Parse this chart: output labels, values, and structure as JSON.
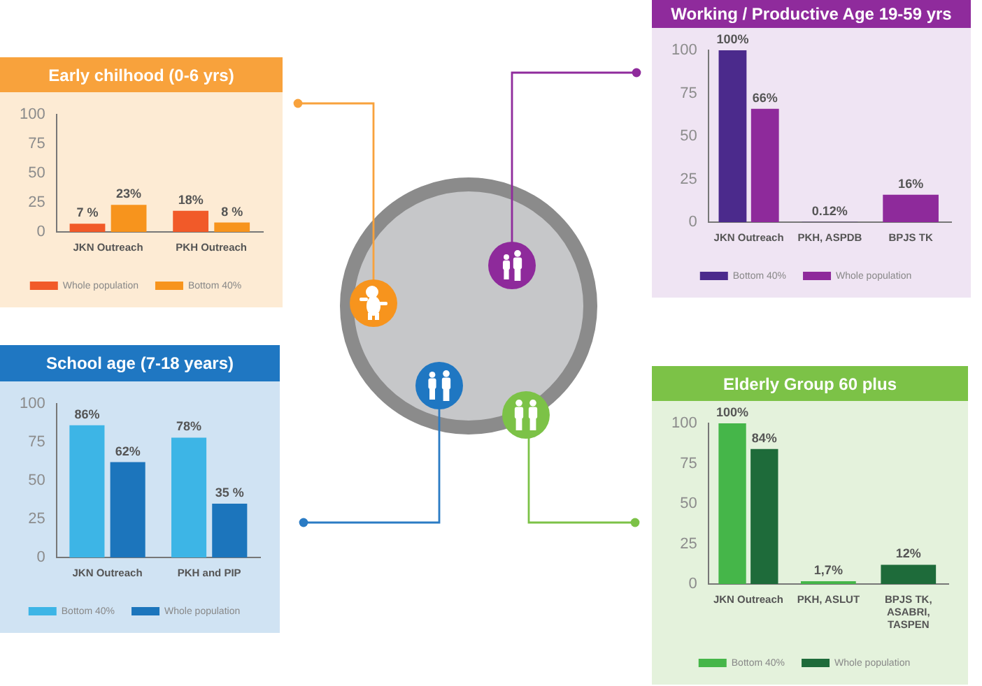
{
  "chart_data": [
    {
      "type": "bar",
      "title": "Early chilhood (0-6 yrs)",
      "categories": [
        "JKN Outreach",
        "PKH Outreach"
      ],
      "series": [
        {
          "name": "Whole population",
          "color": "#f15a29",
          "values": [
            7,
            18
          ],
          "value_labels": [
            "7 %",
            "18%"
          ]
        },
        {
          "name": "Bottom 40%",
          "color": "#f7941d",
          "values": [
            23,
            8
          ],
          "value_labels": [
            "23%",
            "8 %"
          ]
        }
      ],
      "ylim": [
        0,
        100
      ],
      "yticks": [
        0,
        25,
        50,
        75,
        100
      ],
      "legend": "bottom"
    },
    {
      "type": "bar",
      "title": "Working / Productive Age 19-59 yrs",
      "categories": [
        "JKN Outreach",
        "PKH, ASPDB",
        "BPJS TK"
      ],
      "series": [
        {
          "name": "Bottom 40%",
          "color": "#4b2a8c",
          "values": [
            100,
            0.12,
            null
          ],
          "value_labels": [
            "100%",
            "0.12%",
            null
          ]
        },
        {
          "name": "Whole population",
          "color": "#8e2a9b",
          "values": [
            66,
            null,
            16
          ],
          "value_labels": [
            "66%",
            null,
            "16%"
          ]
        }
      ],
      "ylim": [
        0,
        100
      ],
      "yticks": [
        0,
        25,
        50,
        75,
        100
      ],
      "legend": "bottom"
    },
    {
      "type": "bar",
      "title": "School age (7-18 years)",
      "categories": [
        "JKN Outreach",
        "PKH and PIP"
      ],
      "series": [
        {
          "name": "Bottom 40%",
          "color": "#3db5e6",
          "values": [
            86,
            78
          ],
          "value_labels": [
            "86%",
            "78%"
          ]
        },
        {
          "name": "Whole population",
          "color": "#1c75bc",
          "values": [
            62,
            35
          ],
          "value_labels": [
            "62%",
            "35 %"
          ]
        }
      ],
      "ylim": [
        0,
        100
      ],
      "yticks": [
        0,
        25,
        50,
        75,
        100
      ],
      "legend": "bottom"
    },
    {
      "type": "bar",
      "title": "Elderly Group 60 plus",
      "categories": [
        "JKN Outreach",
        "PKH, ASLUT",
        "BPJS TK, ASABRI, TASPEN"
      ],
      "series": [
        {
          "name": "Bottom 40%",
          "color": "#45b649",
          "values": [
            100,
            1.7,
            null
          ],
          "value_labels": [
            "100%",
            "1,7%",
            null
          ]
        },
        {
          "name": "Whole population",
          "color": "#1e6b3a",
          "values": [
            84,
            null,
            12
          ],
          "value_labels": [
            "84%",
            null,
            "12%"
          ]
        }
      ],
      "ylim": [
        0,
        100
      ],
      "yticks": [
        0,
        25,
        50,
        75,
        100
      ],
      "legend": "bottom"
    }
  ]
}
